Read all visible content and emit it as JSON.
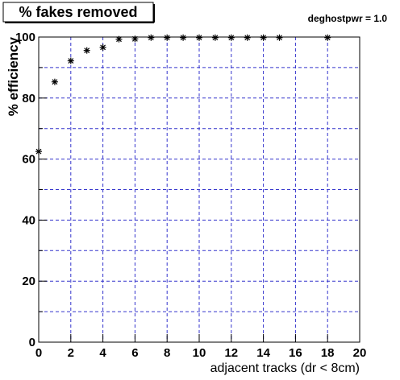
{
  "chart_data": {
    "type": "scatter",
    "title": "% fakes removed",
    "annotation": "deghostpwr = 1.0",
    "x_label": "adjacent tracks (dr < 8cm)",
    "y_label": "% efficiency",
    "x": [
      0,
      1,
      2,
      3,
      4,
      5,
      6,
      7,
      8,
      9,
      10,
      11,
      12,
      13,
      14,
      15,
      18
    ],
    "series": [
      {
        "color": "#000000",
        "values": [
          62.5,
          85.3,
          92.2,
          95.6,
          96.6,
          99.3,
          99.4,
          99.8,
          99.8,
          99.8,
          99.8,
          99.8,
          99.8,
          99.8,
          99.8,
          99.8,
          99.8
        ]
      }
    ],
    "xlim": [
      0,
      20
    ],
    "ylim": [
      0,
      100
    ],
    "xticks": [
      0,
      2,
      4,
      6,
      8,
      10,
      12,
      14,
      16,
      18,
      20
    ],
    "yticks": [
      0,
      20,
      40,
      60,
      80,
      100
    ],
    "yminorticks": [
      10,
      30,
      50,
      70,
      90
    ],
    "grid": true,
    "grid_color": "#3333cc"
  }
}
